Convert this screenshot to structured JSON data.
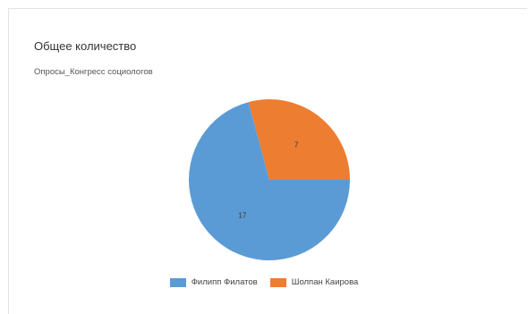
{
  "title": "Общее количество",
  "subtitle": "Опросы_Конгресс социологов",
  "chart_data": {
    "type": "pie",
    "title": "Общее количество",
    "subtitle": "Опросы_Конгресс социологов",
    "categories": [
      "Филипп Филатов",
      "Шолпан Каирова"
    ],
    "values": [
      17,
      7
    ],
    "colors": [
      "#5b9bd5",
      "#ed7d31"
    ],
    "legend_position": "bottom",
    "data_labels": true
  }
}
